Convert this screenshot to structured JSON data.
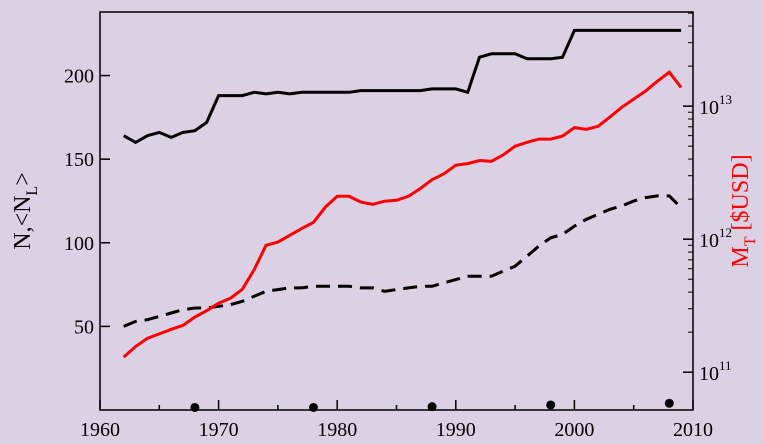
{
  "chart_data": {
    "type": "line",
    "x_label": null,
    "y_label": {
      "text": "N,<N",
      "subscript": "L",
      "suffix": ">"
    },
    "y2_label": {
      "text": "M",
      "subscript": "T",
      "suffix": " [$USD]",
      "color": "#ff0000"
    },
    "xlim": [
      1960,
      2010
    ],
    "xticks": [
      1960,
      1970,
      1980,
      1990,
      2000,
      2010
    ],
    "ylim": [
      0,
      238
    ],
    "yticks": [
      50,
      100,
      150,
      200
    ],
    "y2lim": [
      52000000000.0,
      51000000000000.0
    ],
    "y2log": true,
    "y2ticks": [
      {
        "value": 100000000000.0,
        "label": "10",
        "exponent": "11"
      },
      {
        "value": 1000000000000.0,
        "label": "10",
        "exponent": "12"
      },
      {
        "value": 10000000000000.0,
        "label": "10",
        "exponent": "13"
      }
    ],
    "x": [
      1962,
      1963,
      1964,
      1965,
      1966,
      1967,
      1968,
      1969,
      1970,
      1971,
      1972,
      1973,
      1974,
      1975,
      1976,
      1977,
      1978,
      1979,
      1980,
      1981,
      1982,
      1983,
      1984,
      1985,
      1986,
      1987,
      1988,
      1989,
      1990,
      1991,
      1992,
      1993,
      1994,
      1995,
      1996,
      1997,
      1998,
      1999,
      2000,
      2001,
      2002,
      2003,
      2004,
      2005,
      2006,
      2007,
      2008,
      2009
    ],
    "series": [
      {
        "color": "#000000",
        "dash": "solid",
        "values": [
          164,
          160,
          164,
          166,
          163,
          166,
          167,
          172,
          188,
          188,
          188,
          190,
          189,
          190,
          189,
          190,
          190,
          190,
          190,
          190,
          191,
          191,
          191,
          191,
          191,
          191,
          192,
          192,
          192,
          190,
          211,
          213,
          213,
          213,
          210,
          210,
          210,
          211,
          227,
          227,
          227,
          227,
          227,
          227,
          227,
          227,
          227,
          227
        ]
      },
      {
        "color": "#000000",
        "dash": "dashed",
        "values": [
          50,
          53,
          54,
          56,
          58,
          60,
          61,
          61,
          62,
          63,
          65,
          68,
          71,
          72,
          73,
          73,
          74,
          74,
          74,
          74,
          73,
          73,
          71,
          72,
          73,
          74,
          74,
          76,
          78,
          80,
          80,
          80,
          83,
          86,
          92,
          98,
          103,
          105,
          110,
          114,
          117,
          120,
          122,
          125,
          127,
          128,
          128,
          121
        ]
      },
      {
        "color": "#ff0000",
        "dash": "solid",
        "axis": "y2",
        "values": [
          130000000000.0,
          156000000000.0,
          180000000000.0,
          194000000000.0,
          210000000000.0,
          225000000000.0,
          260000000000.0,
          290000000000.0,
          330000000000.0,
          360000000000.0,
          420000000000.0,
          590000000000.0,
          900000000000.0,
          950000000000.0,
          1070000000000.0,
          1200000000000.0,
          1340000000000.0,
          1740000000000.0,
          2100000000000.0,
          2100000000000.0,
          1900000000000.0,
          1830000000000.0,
          1930000000000.0,
          1960000000000.0,
          2100000000000.0,
          2400000000000.0,
          2800000000000.0,
          3100000000000.0,
          3600000000000.0,
          3700000000000.0,
          3900000000000.0,
          3850000000000.0,
          4300000000000.0,
          5000000000000.0,
          5350000000000.0,
          5650000000000.0,
          5650000000000.0,
          5950000000000.0,
          6900000000000.0,
          6700000000000.0,
          7050000000000.0,
          8300000000000.0,
          9800000000000.0,
          11300000000000.0,
          13000000000000.0,
          15400000000000.0,
          18000000000000.0,
          13800000000000.0
        ]
      }
    ],
    "points": {
      "color": "#000000",
      "x": [
        1968,
        1978,
        1988,
        1998,
        2008
      ],
      "values": [
        1.5,
        1.5,
        2,
        3,
        4
      ]
    }
  }
}
